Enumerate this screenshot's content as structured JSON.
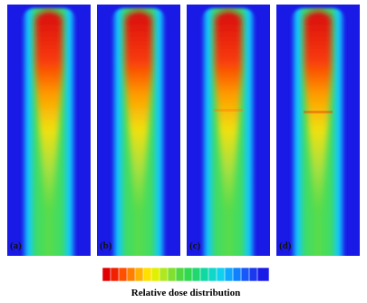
{
  "panels": [
    {
      "label": "(a)"
    },
    {
      "label": "(b)"
    },
    {
      "label": "(c)"
    },
    {
      "label": "(d)"
    }
  ],
  "colorbar": {
    "label": "Relative dose distribution"
  }
}
